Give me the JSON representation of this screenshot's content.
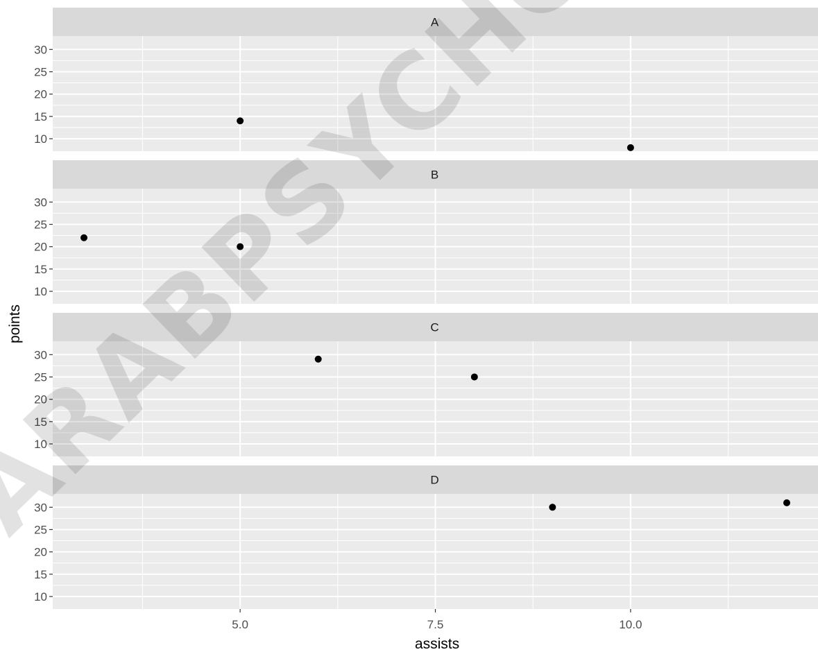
{
  "chart_data": {
    "type": "scatter",
    "facet_by": "team",
    "xlabel": "assists",
    "ylabel": "points",
    "xlim": [
      2.6,
      12.4
    ],
    "ylim": [
      7.2,
      33
    ],
    "x_ticks": [
      5.0,
      7.5,
      10.0
    ],
    "x_tick_labels": [
      "5.0",
      "7.5",
      "10.0"
    ],
    "y_ticks": [
      10,
      15,
      20,
      25,
      30
    ],
    "y_tick_labels": [
      "10",
      "15",
      "20",
      "25",
      "30"
    ],
    "grid": true,
    "legend": "none",
    "panels": [
      {
        "label": "A",
        "points": [
          {
            "x": 5,
            "y": 14
          },
          {
            "x": 10,
            "y": 8
          }
        ]
      },
      {
        "label": "B",
        "points": [
          {
            "x": 3,
            "y": 22
          },
          {
            "x": 5,
            "y": 20
          }
        ]
      },
      {
        "label": "C",
        "points": [
          {
            "x": 6,
            "y": 29
          },
          {
            "x": 8,
            "y": 25
          }
        ]
      },
      {
        "label": "D",
        "points": [
          {
            "x": 9,
            "y": 30
          },
          {
            "x": 12,
            "y": 31
          }
        ]
      }
    ]
  },
  "watermark": "ARABPSYCHOL",
  "colors": {
    "panel_background": "#ebebeb",
    "strip_background": "#d9d9d9",
    "grid": "#ffffff",
    "point": "#000000"
  }
}
